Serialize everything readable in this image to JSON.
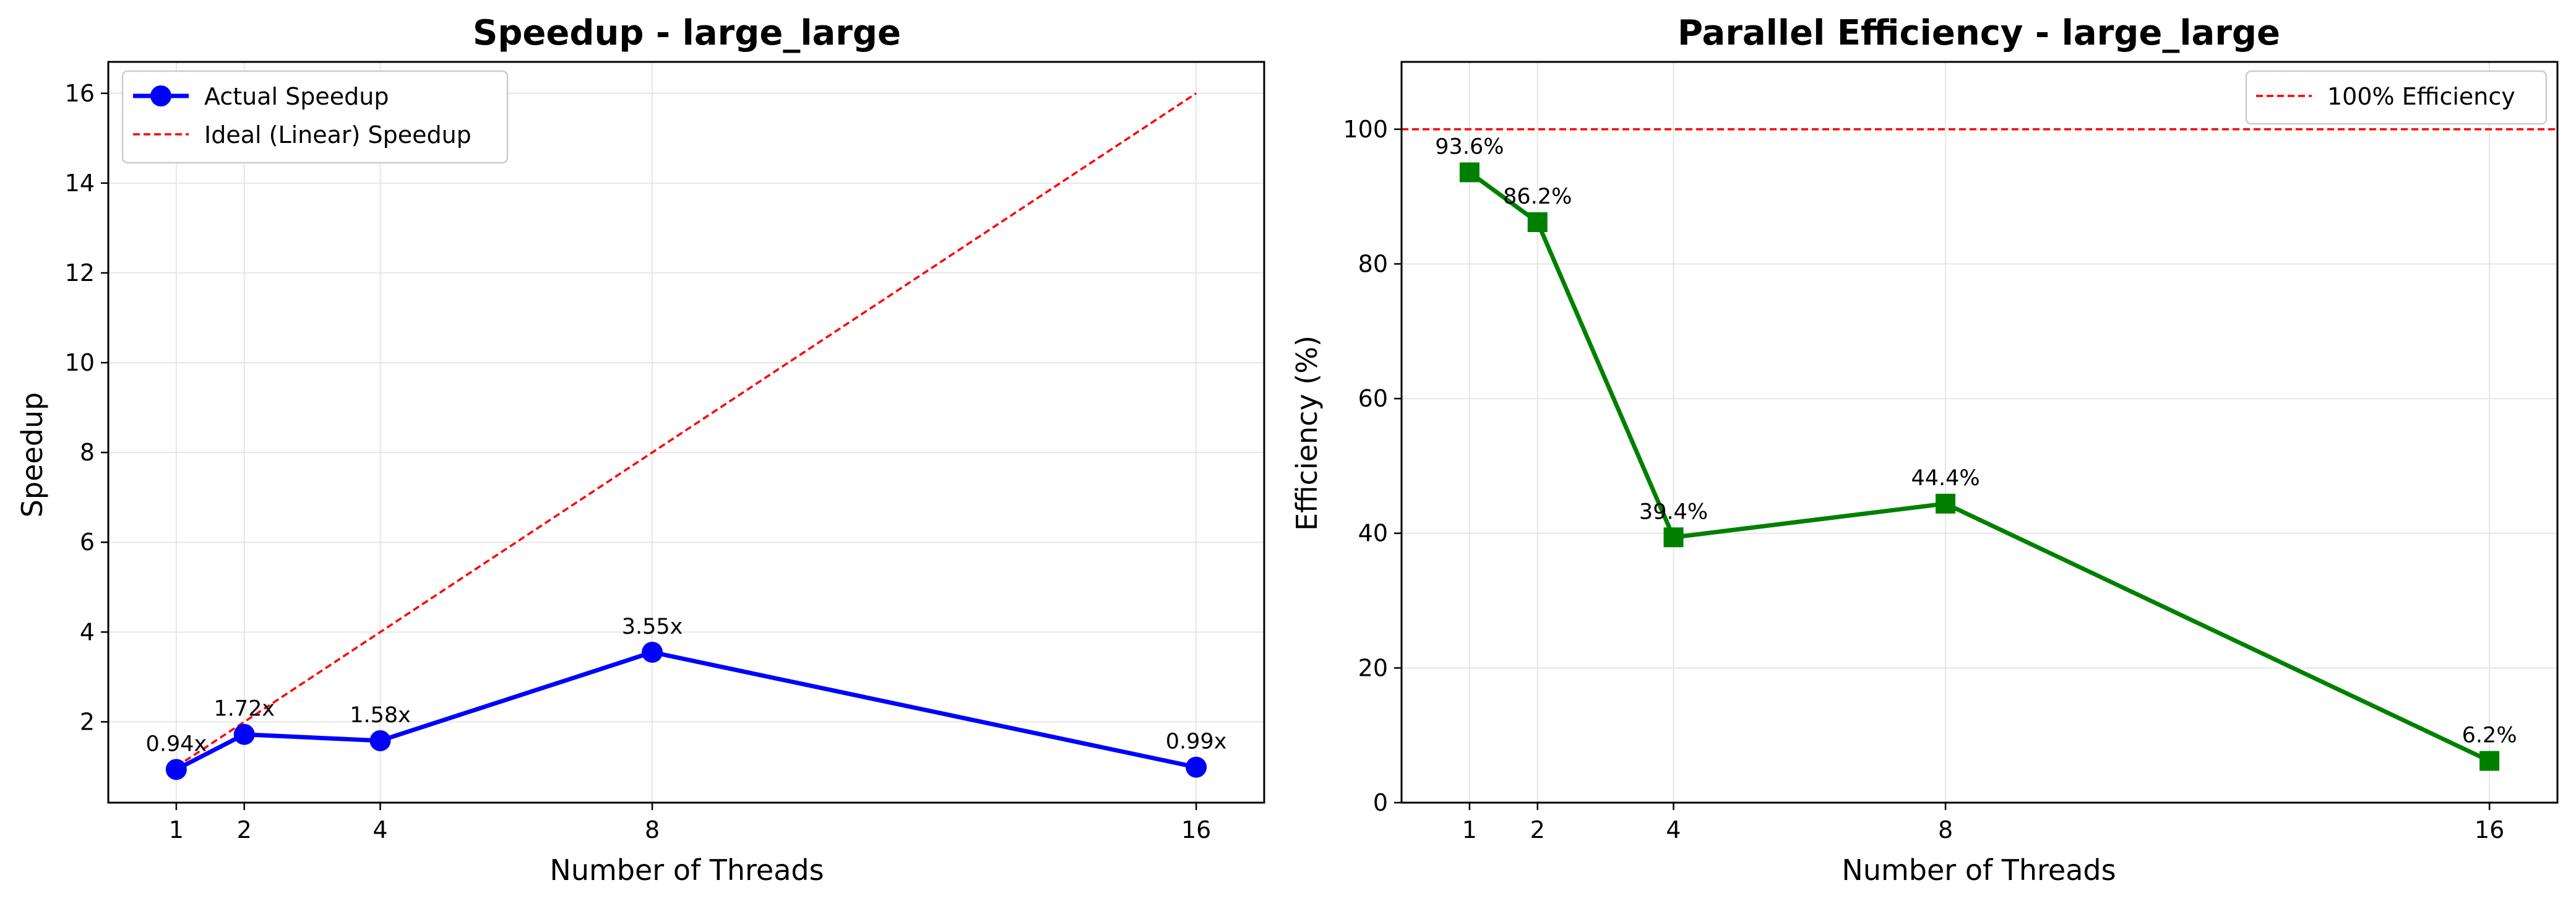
{
  "chart_data": [
    {
      "type": "line",
      "title": "Speedup - large_large",
      "xlabel": "Number of Threads",
      "ylabel": "Speedup",
      "x": [
        1,
        2,
        4,
        8,
        16
      ],
      "xlim": [
        0,
        17
      ],
      "ylim": [
        0.2,
        16.7
      ],
      "yticks": [
        2,
        4,
        6,
        8,
        10,
        12,
        14,
        16
      ],
      "grid": true,
      "legend_position": "top-left",
      "series": [
        {
          "name": "Actual Speedup",
          "values": [
            0.94,
            1.72,
            1.58,
            3.55,
            0.99
          ],
          "labels": [
            "0.94x",
            "1.72x",
            "1.58x",
            "3.55x",
            "0.99x"
          ],
          "color": "#0000ff",
          "marker": "circle",
          "style": "solid"
        },
        {
          "name": "Ideal (Linear) Speedup",
          "values": [
            1,
            2,
            4,
            8,
            16
          ],
          "color": "#ff0000",
          "style": "dashed"
        }
      ]
    },
    {
      "type": "line",
      "title": "Parallel Efficiency - large_large",
      "xlabel": "Number of Threads",
      "ylabel": "Efficiency (%)",
      "x": [
        1,
        2,
        4,
        8,
        16
      ],
      "xlim": [
        0,
        17
      ],
      "ylim": [
        0,
        110
      ],
      "yticks": [
        0,
        20,
        40,
        60,
        80,
        100
      ],
      "grid": true,
      "legend_position": "top-right",
      "series": [
        {
          "name": "Efficiency",
          "values": [
            93.6,
            86.2,
            39.4,
            44.4,
            6.2
          ],
          "labels": [
            "93.6%",
            "86.2%",
            "39.4%",
            "44.4%",
            "6.2%"
          ],
          "color": "#008000",
          "marker": "square",
          "style": "solid"
        }
      ],
      "reference_line": {
        "name": "100% Efficiency",
        "value": 100,
        "color": "#ff0000",
        "style": "dashed"
      }
    }
  ]
}
